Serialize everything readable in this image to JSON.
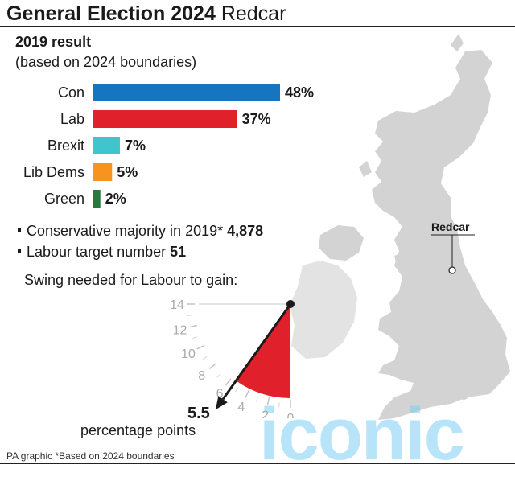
{
  "header": {
    "title_bold": "General Election 2024",
    "title_light": "Redcar"
  },
  "result": {
    "heading": "2019 result",
    "subheading": "(based on 2024 boundaries)"
  },
  "chart_data": [
    {
      "type": "bar",
      "orientation": "horizontal",
      "title": "2019 result",
      "subtitle": "(based on 2024 boundaries)",
      "categories": [
        "Con",
        "Lab",
        "Brexit",
        "Lib Dems",
        "Green"
      ],
      "values": [
        48,
        37,
        7,
        5,
        2
      ],
      "labels": [
        "48%",
        "37%",
        "7%",
        "5%",
        "2%"
      ],
      "colors": [
        "#1575c1",
        "#e0212b",
        "#3ec6cc",
        "#f7941e",
        "#287a3c"
      ],
      "xlim": [
        0,
        48
      ]
    },
    {
      "type": "gauge",
      "title": "Swing needed for Labour to gain:",
      "ticks": [
        0,
        2,
        4,
        6,
        8,
        10,
        12,
        14
      ],
      "range": [
        0,
        14
      ],
      "value": 5.5,
      "value_label": "5.5",
      "unit": "percentage points",
      "fill_color": "#e0212b"
    }
  ],
  "notes": [
    {
      "text": "Conservative majority in 2019*",
      "value": "4,878"
    },
    {
      "text": "Labour target number",
      "value": "51"
    }
  ],
  "map": {
    "label": "Redcar",
    "land_color": "#d3d3d3"
  },
  "watermark": "iconic",
  "footer": "PA graphic *Based on 2024 boundaries"
}
